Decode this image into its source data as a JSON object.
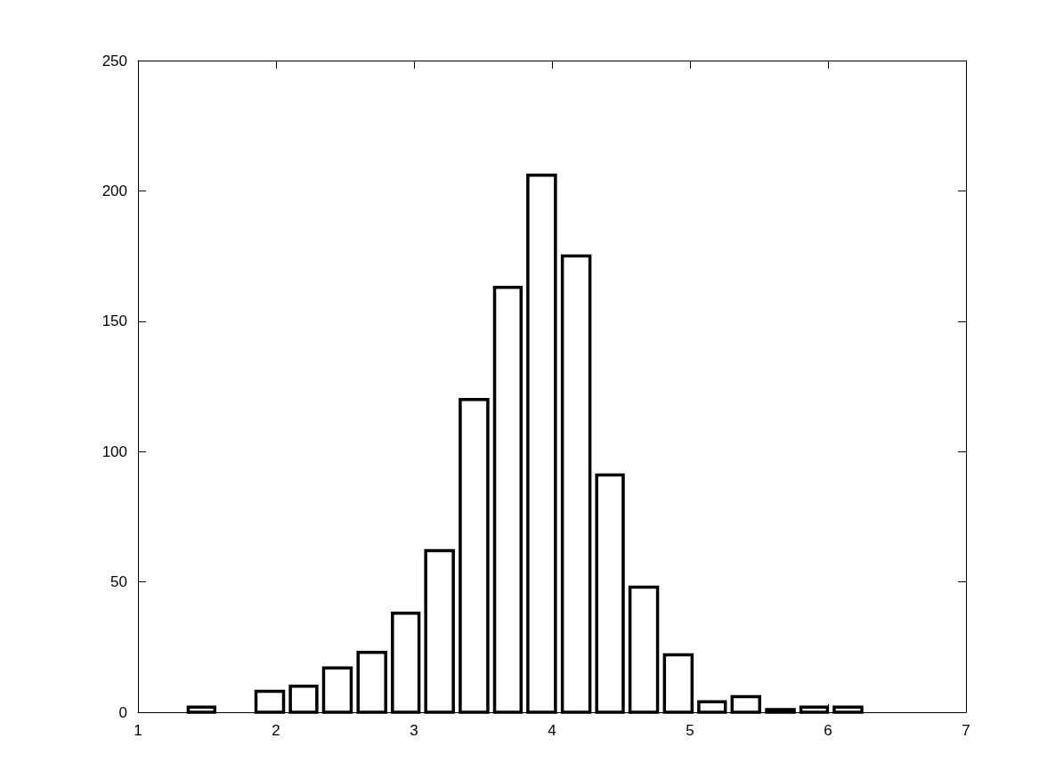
{
  "chart_data": {
    "type": "histogram",
    "bins": [
      1.34,
      1.58,
      1.83,
      2.08,
      2.32,
      2.57,
      2.82,
      3.06,
      3.31,
      3.56,
      3.8,
      4.05,
      4.3,
      4.54,
      4.79,
      5.04,
      5.28,
      5.53,
      5.78,
      6.02,
      6.27
    ],
    "values": [
      2,
      0,
      8,
      10,
      17,
      23,
      38,
      62,
      120,
      163,
      206,
      175,
      91,
      48,
      22,
      4,
      6,
      1,
      2,
      2
    ],
    "xlim": [
      1,
      7
    ],
    "xticks": [
      1,
      2,
      3,
      4,
      5,
      6,
      7
    ],
    "ylim": [
      0,
      250
    ],
    "yticks": [
      0,
      50,
      100,
      150,
      200,
      250
    ],
    "grid": false
  }
}
